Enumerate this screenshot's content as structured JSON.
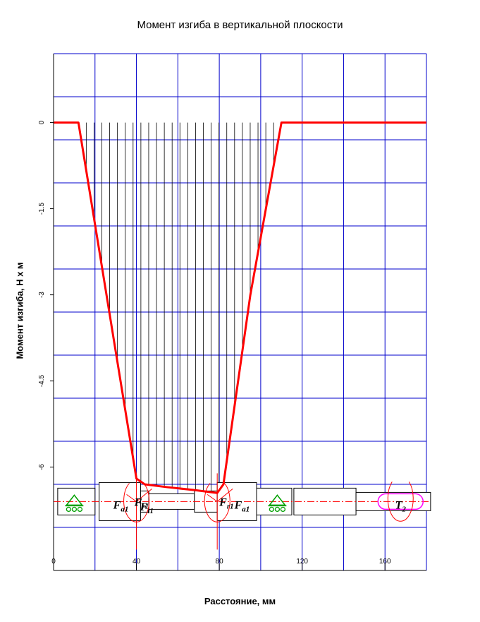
{
  "chart_data": {
    "type": "line",
    "title": "Момент изгиба в вертикальной плоскости",
    "xlabel": "Расстояние, мм",
    "ylabel": "Момент изгиба, Н х м",
    "xlim": [
      0,
      180
    ],
    "ylim": [
      -7.8,
      1.2
    ],
    "grid": true,
    "x_ticks": [
      {
        "value": 0,
        "label": "0"
      },
      {
        "value": 40,
        "label": "40"
      },
      {
        "value": 80,
        "label": "80"
      },
      {
        "value": 120,
        "label": "120"
      },
      {
        "value": 160,
        "label": "160"
      }
    ],
    "y_ticks": [
      {
        "value": 0,
        "label": "0"
      },
      {
        "value": -1.5,
        "label": "-1.5"
      },
      {
        "value": -3,
        "label": "-3"
      },
      {
        "value": -4.5,
        "label": "-4.5"
      },
      {
        "value": -6,
        "label": "-6"
      }
    ],
    "series": [
      {
        "color": "#ff0000",
        "x": [
          0,
          12,
          40,
          44,
          55,
          68,
          79,
          82,
          95,
          110,
          180
        ],
        "y": [
          0,
          0,
          -6.2,
          -6.3,
          -6.35,
          -6.4,
          -6.45,
          -6.3,
          -3,
          0,
          0
        ]
      }
    ],
    "fill_x_start": 12,
    "fill_x_end": 110,
    "fill_lines": 26,
    "shaft_axis_y": -6.6,
    "force_labels": [
      {
        "base": "F",
        "sub": "a1",
        "x": 32.5,
        "y": -6.65
      },
      {
        "base": "F",
        "sub": "r1",
        "x": 42.5,
        "y": -6.6
      },
      {
        "base": "F",
        "sub": "t1",
        "x": 45.0,
        "y": -6.68
      },
      {
        "base": "F",
        "sub": "r1",
        "x": 83.5,
        "y": -6.6
      },
      {
        "base": "F",
        "sub": "a1",
        "x": 91.0,
        "y": -6.65
      },
      {
        "base": "T",
        "sub": "2",
        "x": 167.5,
        "y": -6.65
      }
    ],
    "colors": {
      "grid": "#0000cc",
      "fill_lines": "#000000",
      "curve": "#ff0000",
      "support": "#00a000",
      "torque": "#ff00ff",
      "shaft": "#000000"
    }
  }
}
